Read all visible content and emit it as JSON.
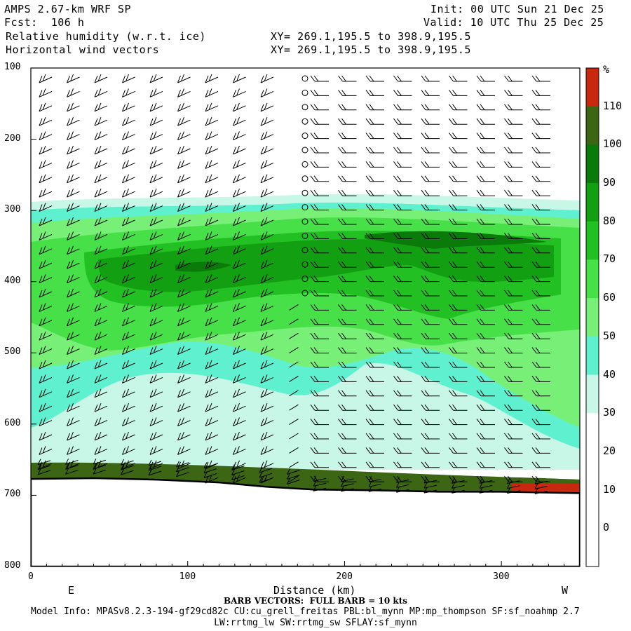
{
  "header": {
    "line1_left": "AMPS 2.67-km WRF SP",
    "line2_left": "Fcst:  106 h",
    "line3_left": "Relative humidity (w.r.t. ice)",
    "line4_left": "Horizontal wind vectors",
    "init": "Init: 00 UTC Sun 21 Dec 25",
    "valid": "Valid: 10 UTC Thu 25 Dec 25",
    "xy1": "XY= 269.1,195.5 to 398.9,195.5",
    "xy2": "XY= 269.1,195.5 to 398.9,195.5"
  },
  "footer": {
    "barb": "BARB VECTORS:  FULL BARB = 10 kts",
    "model1": "Model Info: MPASv8.2.3-194-gf29cd82c CU:cu_grell_freitas PBL:bl_mynn MP:mp_thompson SF:sf_noahmp 2.7",
    "model2": "LW:rrtmg_lw SW:rrtmg_sw SFLAY:sf_mynn"
  },
  "colors": {
    "rh_30_40": "#c8f7e8",
    "rh_40_50": "#5ff0cf",
    "rh_50_60": "#78f078",
    "rh_60_70": "#48e048",
    "rh_70_80": "#22c022",
    "rh_80_90": "#12a012",
    "rh_90_100": "#0a7a0a",
    "rh_100_110": "#3c6614",
    "rh_110_plus": "#c82810",
    "terrain": "#000000"
  },
  "chart_data": {
    "type": "heatmap",
    "title": "Relative humidity (w.r.t. ice)",
    "xlabel": "Distance (km)",
    "ylabel": "",
    "x_range": [
      0,
      350
    ],
    "y_range": [
      100,
      800
    ],
    "y_inverted": true,
    "x_ticks": [
      "0",
      "100",
      "200",
      "300"
    ],
    "y_ticks": [
      "100",
      "200",
      "300",
      "400",
      "500",
      "600",
      "700",
      "800"
    ],
    "x_end_labels": {
      "left": "E",
      "right": "W"
    },
    "colorbar": {
      "unit": "%",
      "levels": [
        "110",
        "100",
        "90",
        "80",
        "70",
        "60",
        "50",
        "40",
        "30",
        "20",
        "10",
        "0"
      ]
    },
    "terrain_surface": [
      {
        "x": 0,
        "p": 677
      },
      {
        "x": 40,
        "p": 676
      },
      {
        "x": 80,
        "p": 678
      },
      {
        "x": 120,
        "p": 682
      },
      {
        "x": 150,
        "p": 688
      },
      {
        "x": 180,
        "p": 692
      },
      {
        "x": 220,
        "p": 693
      },
      {
        "x": 260,
        "p": 695
      },
      {
        "x": 300,
        "p": 695
      },
      {
        "x": 350,
        "p": 697
      }
    ]
  }
}
